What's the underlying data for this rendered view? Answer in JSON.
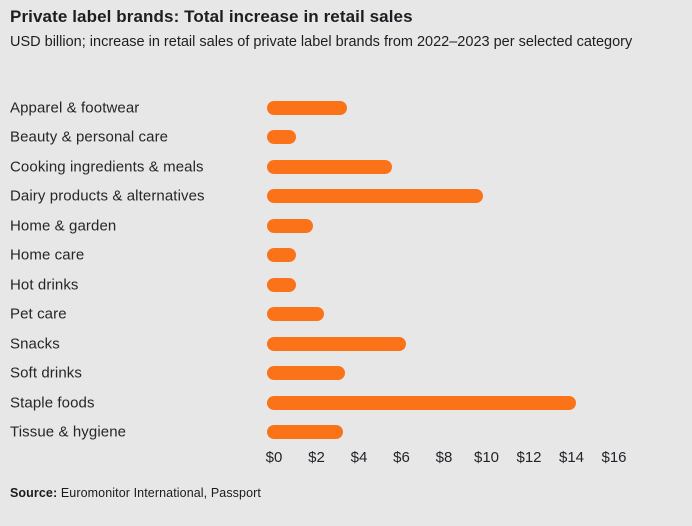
{
  "source": {
    "label": "Source:",
    "text": "Euromonitor International, Passport"
  },
  "colors": {
    "bar": "#FB7318",
    "background": "#E8E7E7",
    "text": "#1E1D22"
  },
  "chart_data": {
    "type": "bar",
    "orientation": "horizontal",
    "title": "Private label brands: Total increase in retail sales",
    "subtitle": "USD billion; increase in retail sales of private label brands from 2022–2023 per selected category",
    "categories": [
      "Apparel & footwear",
      "Beauty & personal care",
      "Cooking ingredients & meals",
      "Dairy products & alternatives",
      "Home & garden",
      "Home care",
      "Hot drinks",
      "Pet care",
      "Snacks",
      "Soft drinks",
      "Staple foods",
      "Tissue & hygiene"
    ],
    "values": [
      3.1,
      0.7,
      5.2,
      9.5,
      1.5,
      0.7,
      0.7,
      2.0,
      5.9,
      3.0,
      13.9,
      2.9
    ],
    "unit": "USD billion",
    "xlabel": "USD billion",
    "ylabel": "",
    "xlim": [
      0,
      16
    ],
    "x_ticks": [
      0,
      2,
      4,
      6,
      8,
      10,
      12,
      14,
      16
    ],
    "x_tick_labels": [
      "$0",
      "$2",
      "$4",
      "$6",
      "$8",
      "$10",
      "$12",
      "$14",
      "$16"
    ],
    "grid": false,
    "legend": false,
    "bar_style": "rounded-pill"
  }
}
